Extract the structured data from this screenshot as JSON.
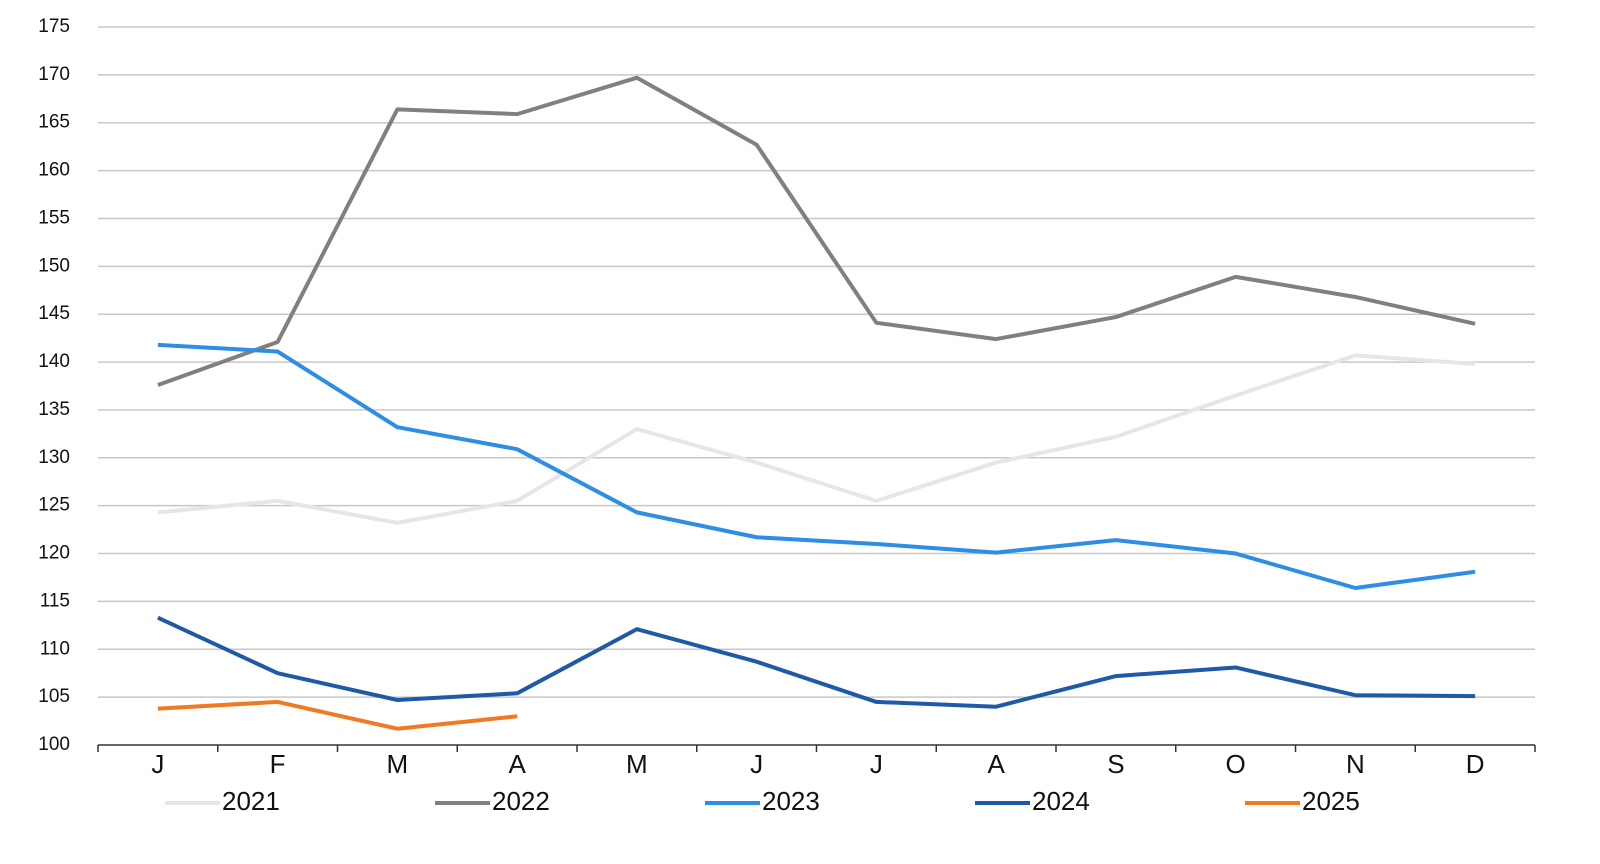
{
  "chart_data": {
    "type": "line",
    "categories": [
      "J",
      "F",
      "M",
      "A",
      "M",
      "J",
      "J",
      "A",
      "S",
      "O",
      "N",
      "D"
    ],
    "series": [
      {
        "name": "2021",
        "color": "#e6e6e6",
        "values": [
          124.3,
          125.5,
          123.2,
          125.5,
          133.0,
          129.5,
          125.5,
          129.5,
          132.2,
          136.5,
          140.7,
          139.8
        ]
      },
      {
        "name": "2022",
        "color": "#808080",
        "values": [
          137.6,
          142.1,
          166.4,
          165.9,
          169.7,
          162.7,
          144.1,
          142.4,
          144.7,
          148.9,
          146.8,
          144.0
        ]
      },
      {
        "name": "2023",
        "color": "#2e8ee6",
        "values": [
          141.8,
          141.1,
          133.2,
          130.9,
          124.3,
          121.7,
          121.0,
          120.1,
          121.4,
          120.0,
          116.4,
          118.1
        ]
      },
      {
        "name": "2024",
        "color": "#1f5aa8",
        "values": [
          113.3,
          107.5,
          104.7,
          105.4,
          112.1,
          108.7,
          104.5,
          104.0,
          107.2,
          108.1,
          105.2,
          105.1
        ]
      },
      {
        "name": "2025",
        "color": "#f07a22",
        "values": [
          103.8,
          104.5,
          101.7,
          103.0,
          null,
          null,
          null,
          null,
          null,
          null,
          null,
          null
        ]
      }
    ],
    "ylim": [
      100,
      175
    ],
    "yticks": [
      100,
      105,
      110,
      115,
      120,
      125,
      130,
      135,
      140,
      145,
      150,
      155,
      160,
      165,
      170,
      175
    ],
    "grid": true,
    "legend": "bottom"
  }
}
